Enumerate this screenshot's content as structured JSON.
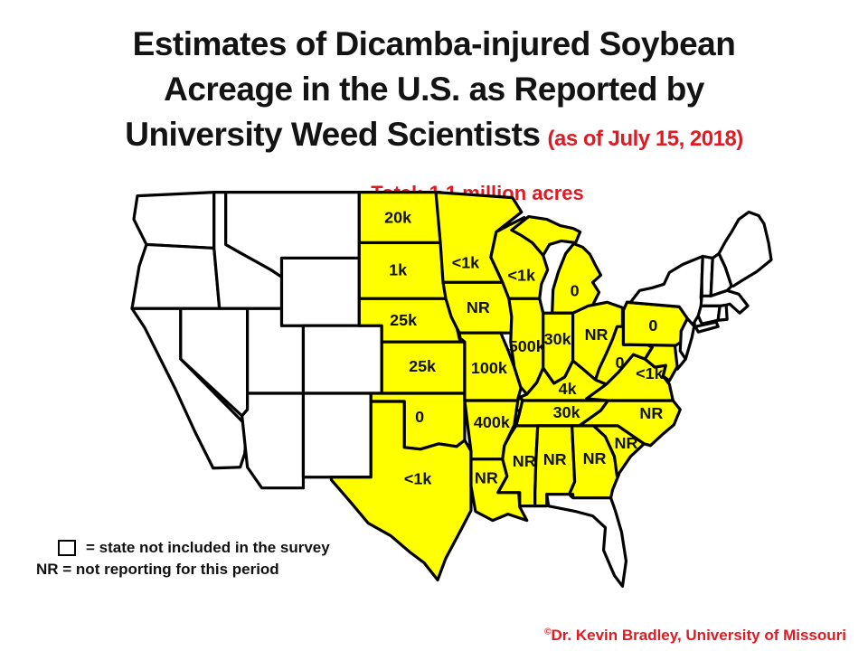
{
  "title": {
    "line1": "Estimates of Dicamba-injured Soybean",
    "line2": "Acreage in the U.S. as Reported by",
    "line3": "University Weed Scientists",
    "date_note": "(as of July 15, 2018)"
  },
  "subtitle": "Total: 1.1 million acres",
  "legend": {
    "square_line": "= state not included in the survey",
    "nr_line": "NR = not reporting for this period"
  },
  "credit": {
    "symbol": "©",
    "text": "Dr. Kevin Bradley, University of Missouri"
  },
  "colors": {
    "included_fill": "#ffff00",
    "not_included_fill": "#ffffff",
    "border": "#000000",
    "accent_red": "#e01a22",
    "label_text": "#111111"
  },
  "map": {
    "states": [
      {
        "id": "WA",
        "name": "Washington",
        "value": "",
        "included": false
      },
      {
        "id": "OR",
        "name": "Oregon",
        "value": "",
        "included": false
      },
      {
        "id": "CA",
        "name": "California",
        "value": "",
        "included": false
      },
      {
        "id": "ID",
        "name": "Idaho",
        "value": "",
        "included": false
      },
      {
        "id": "NV",
        "name": "Nevada",
        "value": "",
        "included": false
      },
      {
        "id": "UT",
        "name": "Utah",
        "value": "",
        "included": false
      },
      {
        "id": "AZ",
        "name": "Arizona",
        "value": "",
        "included": false
      },
      {
        "id": "MT",
        "name": "Montana",
        "value": "",
        "included": false
      },
      {
        "id": "WY",
        "name": "Wyoming",
        "value": "",
        "included": false
      },
      {
        "id": "CO",
        "name": "Colorado",
        "value": "",
        "included": false
      },
      {
        "id": "NM",
        "name": "New Mexico",
        "value": "",
        "included": false
      },
      {
        "id": "ND",
        "name": "North Dakota",
        "value": "20k",
        "included": true
      },
      {
        "id": "SD",
        "name": "South Dakota",
        "value": "1k",
        "included": true
      },
      {
        "id": "NE",
        "name": "Nebraska",
        "value": "25k",
        "included": true
      },
      {
        "id": "KS",
        "name": "Kansas",
        "value": "25k",
        "included": true
      },
      {
        "id": "OK",
        "name": "Oklahoma",
        "value": "0",
        "included": true
      },
      {
        "id": "TX",
        "name": "Texas",
        "value": "<1k",
        "included": true
      },
      {
        "id": "MN",
        "name": "Minnesota",
        "value": "<1k",
        "included": true
      },
      {
        "id": "IA",
        "name": "Iowa",
        "value": "NR",
        "included": true
      },
      {
        "id": "MO",
        "name": "Missouri",
        "value": "100k",
        "included": true
      },
      {
        "id": "AR",
        "name": "Arkansas",
        "value": "400k",
        "included": true
      },
      {
        "id": "LA",
        "name": "Louisiana",
        "value": "NR",
        "included": true
      },
      {
        "id": "WI",
        "name": "Wisconsin",
        "value": "<1k",
        "included": true
      },
      {
        "id": "IL",
        "name": "Illinois",
        "value": "500k",
        "included": true
      },
      {
        "id": "MS",
        "name": "Mississippi",
        "value": "NR",
        "included": true
      },
      {
        "id": "MI",
        "name": "Michigan",
        "value": "0",
        "included": true
      },
      {
        "id": "IN",
        "name": "Indiana",
        "value": "30k",
        "included": true
      },
      {
        "id": "OH",
        "name": "Ohio",
        "value": "NR",
        "included": true
      },
      {
        "id": "KY",
        "name": "Kentucky",
        "value": "4k",
        "included": true
      },
      {
        "id": "TN",
        "name": "Tennessee",
        "value": "30k",
        "included": true
      },
      {
        "id": "AL",
        "name": "Alabama",
        "value": "NR",
        "included": true
      },
      {
        "id": "GA",
        "name": "Georgia",
        "value": "NR",
        "included": true
      },
      {
        "id": "FL",
        "name": "Florida",
        "value": "",
        "included": false
      },
      {
        "id": "SC",
        "name": "South Carolina",
        "value": "NR",
        "included": true
      },
      {
        "id": "NC",
        "name": "North Carolina",
        "value": "NR",
        "included": true
      },
      {
        "id": "VA",
        "name": "Virginia",
        "value": "<1k",
        "included": true
      },
      {
        "id": "WV",
        "name": "West Virginia",
        "value": "0",
        "included": true
      },
      {
        "id": "MD",
        "name": "Maryland",
        "value": "",
        "included": true
      },
      {
        "id": "DE",
        "name": "Delaware",
        "value": "",
        "included": false
      },
      {
        "id": "PA",
        "name": "Pennsylvania",
        "value": "0",
        "included": true
      },
      {
        "id": "NJ",
        "name": "New Jersey",
        "value": "",
        "included": false
      },
      {
        "id": "NY",
        "name": "New York",
        "value": "",
        "included": false
      },
      {
        "id": "CT",
        "name": "Connecticut",
        "value": "",
        "included": false
      },
      {
        "id": "RI",
        "name": "Rhode Island",
        "value": "",
        "included": false
      },
      {
        "id": "MA",
        "name": "Massachusetts",
        "value": "",
        "included": false
      },
      {
        "id": "VT",
        "name": "Vermont",
        "value": "",
        "included": false
      },
      {
        "id": "NH",
        "name": "New Hampshire",
        "value": "",
        "included": false
      },
      {
        "id": "ME",
        "name": "Maine",
        "value": "",
        "included": false
      }
    ]
  }
}
